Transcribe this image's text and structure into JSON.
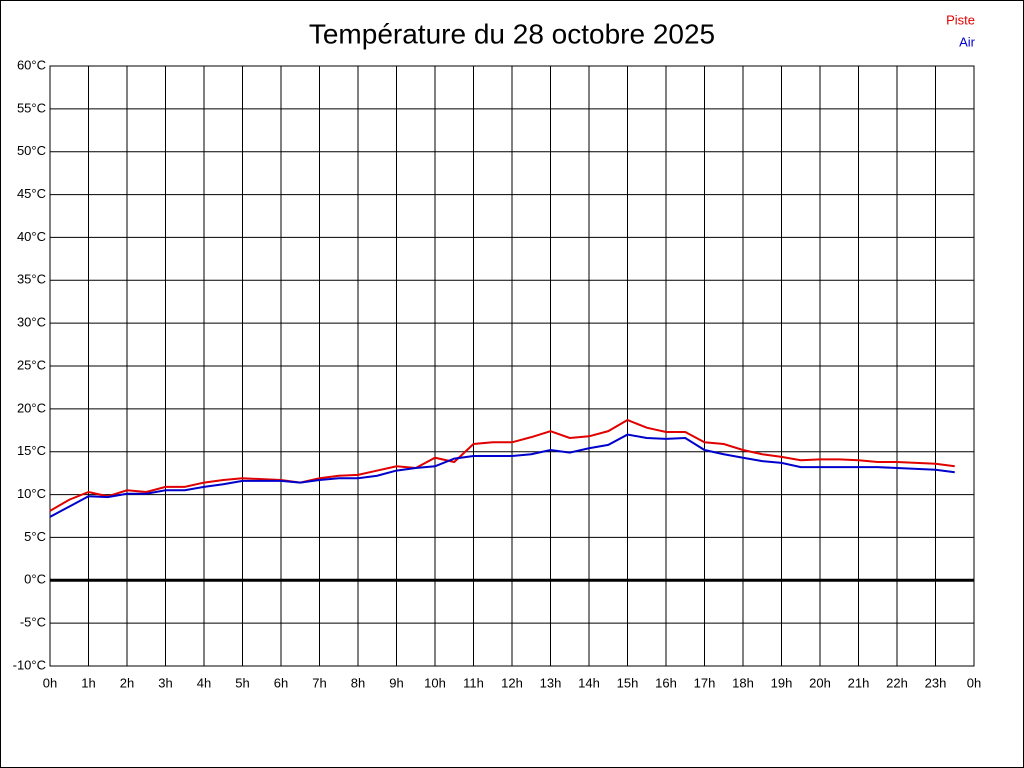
{
  "chart_data": {
    "type": "line",
    "title": "Température du 28 octobre 2025",
    "x": [
      0,
      0.5,
      1,
      1.5,
      2,
      2.5,
      3,
      3.5,
      4,
      4.5,
      5,
      5.5,
      6,
      6.5,
      7,
      7.5,
      8,
      8.5,
      9,
      9.5,
      10,
      10.5,
      11,
      11.5,
      12,
      12.5,
      13,
      13.5,
      14,
      14.5,
      15,
      15.5,
      16,
      16.5,
      17,
      17.5,
      18,
      18.5,
      19,
      19.5,
      20,
      20.5,
      21,
      21.5,
      22,
      22.5,
      23,
      23.5
    ],
    "series": [
      {
        "name": "Piste",
        "color": "#e00000",
        "values": [
          8.1,
          9.4,
          10.3,
          9.8,
          10.5,
          10.3,
          10.9,
          10.9,
          11.4,
          11.7,
          11.9,
          11.8,
          11.7,
          11.4,
          11.9,
          12.2,
          12.3,
          12.8,
          13.3,
          13.1,
          14.3,
          13.8,
          15.9,
          16.1,
          16.1,
          16.7,
          17.4,
          16.6,
          16.8,
          17.4,
          18.7,
          17.8,
          17.3,
          17.3,
          16.1,
          15.9,
          15.2,
          14.7,
          14.4,
          14.0,
          14.1,
          14.1,
          14.0,
          13.8,
          13.8,
          13.7,
          13.6,
          13.3
        ]
      },
      {
        "name": "Air",
        "color": "#0000cc",
        "values": [
          7.4,
          8.6,
          9.8,
          9.7,
          10.1,
          10.1,
          10.5,
          10.5,
          10.9,
          11.2,
          11.6,
          11.6,
          11.6,
          11.4,
          11.7,
          11.9,
          11.9,
          12.2,
          12.8,
          13.1,
          13.3,
          14.2,
          14.5,
          14.5,
          14.5,
          14.7,
          15.2,
          14.9,
          15.4,
          15.8,
          17.0,
          16.6,
          16.5,
          16.6,
          15.2,
          14.7,
          14.3,
          13.9,
          13.7,
          13.2,
          13.2,
          13.2,
          13.2,
          13.2,
          13.1,
          13.0,
          12.9,
          12.6
        ]
      }
    ],
    "xlim": [
      0,
      24
    ],
    "xticks": [
      {
        "value": 0,
        "label": "0h"
      },
      {
        "value": 1,
        "label": "1h"
      },
      {
        "value": 2,
        "label": "2h"
      },
      {
        "value": 3,
        "label": "3h"
      },
      {
        "value": 4,
        "label": "4h"
      },
      {
        "value": 5,
        "label": "5h"
      },
      {
        "value": 6,
        "label": "6h"
      },
      {
        "value": 7,
        "label": "7h"
      },
      {
        "value": 8,
        "label": "8h"
      },
      {
        "value": 9,
        "label": "9h"
      },
      {
        "value": 10,
        "label": "10h"
      },
      {
        "value": 11,
        "label": "11h"
      },
      {
        "value": 12,
        "label": "12h"
      },
      {
        "value": 13,
        "label": "13h"
      },
      {
        "value": 14,
        "label": "14h"
      },
      {
        "value": 15,
        "label": "15h"
      },
      {
        "value": 16,
        "label": "16h"
      },
      {
        "value": 17,
        "label": "17h"
      },
      {
        "value": 18,
        "label": "18h"
      },
      {
        "value": 19,
        "label": "19h"
      },
      {
        "value": 20,
        "label": "20h"
      },
      {
        "value": 21,
        "label": "21h"
      },
      {
        "value": 22,
        "label": "22h"
      },
      {
        "value": 23,
        "label": "23h"
      },
      {
        "value": 24,
        "label": "0h"
      }
    ],
    "ylim": [
      -10,
      60
    ],
    "yticks": [
      {
        "value": -10,
        "label": "-10°C"
      },
      {
        "value": -5,
        "label": "-5°C"
      },
      {
        "value": 0,
        "label": "0°C"
      },
      {
        "value": 5,
        "label": "5°C"
      },
      {
        "value": 10,
        "label": "10°C"
      },
      {
        "value": 15,
        "label": "15°C"
      },
      {
        "value": 20,
        "label": "20°C"
      },
      {
        "value": 25,
        "label": "25°C"
      },
      {
        "value": 30,
        "label": "30°C"
      },
      {
        "value": 35,
        "label": "35°C"
      },
      {
        "value": 40,
        "label": "40°C"
      },
      {
        "value": 45,
        "label": "45°C"
      },
      {
        "value": 50,
        "label": "50°C"
      },
      {
        "value": 55,
        "label": "55°C"
      },
      {
        "value": 60,
        "label": "60°C"
      }
    ],
    "grid": true,
    "legend": "top-right"
  }
}
